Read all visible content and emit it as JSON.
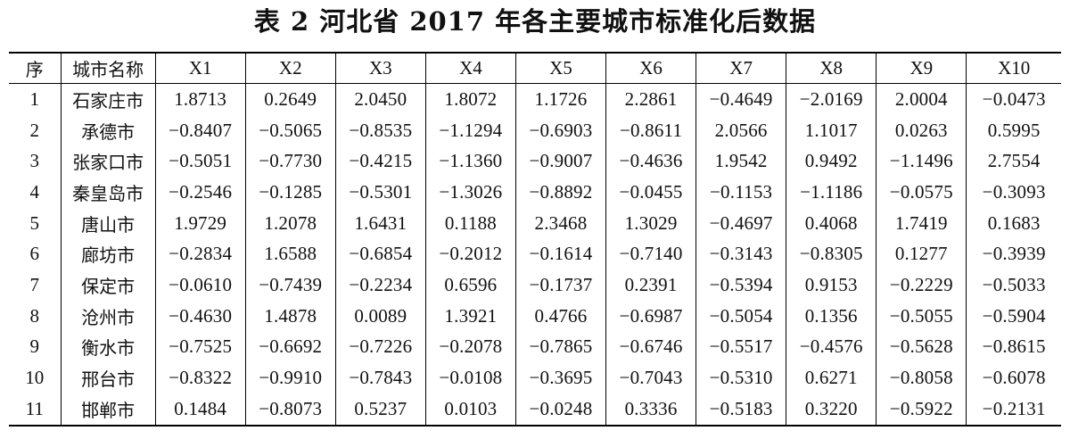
{
  "caption": "表 2  河北省 2017 年各主要城市标准化后数据",
  "headers": [
    "序",
    "城市名称",
    "X1",
    "X2",
    "X3",
    "X4",
    "X5",
    "X6",
    "X7",
    "X8",
    "X9",
    "X10"
  ],
  "rows": [
    [
      "1",
      "石家庄市",
      "1.8713",
      "0.2649",
      "2.0450",
      "1.8072",
      "1.1726",
      "2.2861",
      "−0.4649",
      "−2.0169",
      "2.0004",
      "−0.0473"
    ],
    [
      "2",
      "承德市",
      "−0.8407",
      "−0.5065",
      "−0.8535",
      "−1.1294",
      "−0.6903",
      "−0.8611",
      "2.0566",
      "1.1017",
      "0.0263",
      "0.5995"
    ],
    [
      "3",
      "张家口市",
      "−0.5051",
      "−0.7730",
      "−0.4215",
      "−1.1360",
      "−0.9007",
      "−0.4636",
      "1.9542",
      "0.9492",
      "−1.1496",
      "2.7554"
    ],
    [
      "4",
      "秦皇岛市",
      "−0.2546",
      "−0.1285",
      "−0.5301",
      "−1.3026",
      "−0.8892",
      "−0.0455",
      "−0.1153",
      "−1.1186",
      "−0.0575",
      "−0.3093"
    ],
    [
      "5",
      "唐山市",
      "1.9729",
      "1.2078",
      "1.6431",
      "0.1188",
      "2.3468",
      "1.3029",
      "−0.4697",
      "0.4068",
      "1.7419",
      "0.1683"
    ],
    [
      "6",
      "廊坊市",
      "−0.2834",
      "1.6588",
      "−0.6854",
      "−0.2012",
      "−0.1614",
      "−0.7140",
      "−0.3143",
      "−0.8305",
      "0.1277",
      "−0.3939"
    ],
    [
      "7",
      "保定市",
      "−0.0610",
      "−0.7439",
      "−0.2234",
      "0.6596",
      "−0.1737",
      "0.2391",
      "−0.5394",
      "0.9153",
      "−0.2229",
      "−0.5033"
    ],
    [
      "8",
      "沧州市",
      "−0.4630",
      "1.4878",
      "0.0089",
      "1.3921",
      "0.4766",
      "−0.6987",
      "−0.5054",
      "0.1356",
      "−0.5055",
      "−0.5904"
    ],
    [
      "9",
      "衡水市",
      "−0.7525",
      "−0.6692",
      "−0.7226",
      "−0.2078",
      "−0.7865",
      "−0.6746",
      "−0.5517",
      "−0.4576",
      "−0.5628",
      "−0.8615"
    ],
    [
      "10",
      "邢台市",
      "−0.8322",
      "−0.9910",
      "−0.7843",
      "−0.0108",
      "−0.3695",
      "−0.7043",
      "−0.5310",
      "0.6271",
      "−0.8058",
      "−0.6078"
    ],
    [
      "11",
      "邯郸市",
      "0.1484",
      "−0.8073",
      "0.5237",
      "0.0103",
      "−0.0248",
      "0.3336",
      "−0.5183",
      "0.3220",
      "−0.5922",
      "−0.2131"
    ]
  ]
}
